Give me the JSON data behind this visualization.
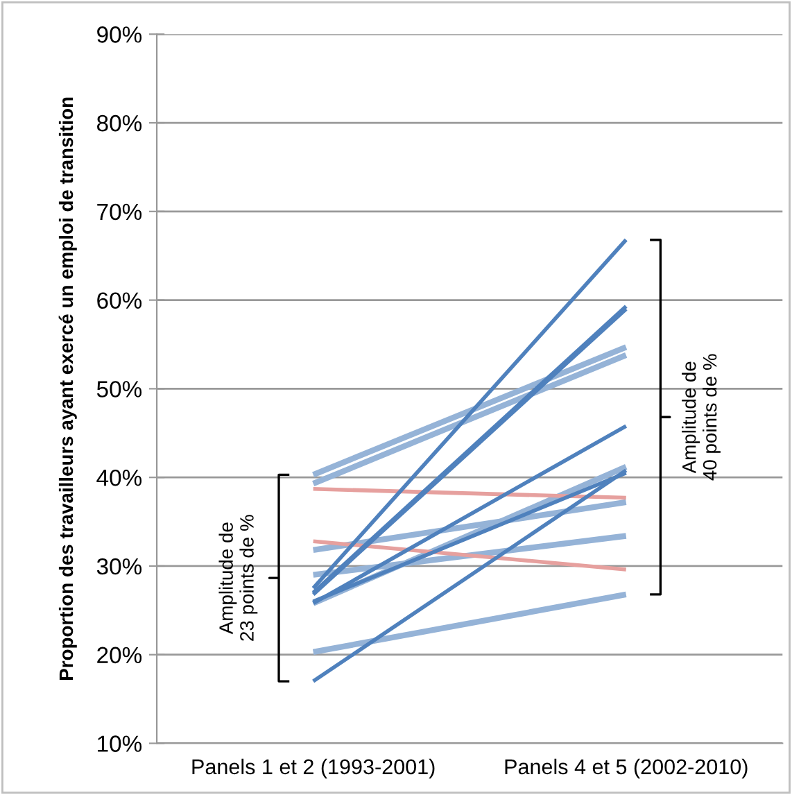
{
  "chart_data": {
    "type": "line",
    "ylabel": "Proportion des travailleurs ayant exercé un emploi de transition",
    "categories": [
      "Panels 1 et 2 (1993-2001)",
      "Panels 4 et 5 (2002-2010)"
    ],
    "ylim": [
      0.1,
      0.9
    ],
    "yticks": [
      {
        "value": 0.1,
        "label": "10%"
      },
      {
        "value": 0.2,
        "label": "20%"
      },
      {
        "value": 0.3,
        "label": "30%"
      },
      {
        "value": 0.4,
        "label": "40%"
      },
      {
        "value": 0.5,
        "label": "50%"
      },
      {
        "value": 0.6,
        "label": "60%"
      },
      {
        "value": 0.7,
        "label": "70%"
      },
      {
        "value": 0.8,
        "label": "80%"
      },
      {
        "value": 0.9,
        "label": "90%"
      }
    ],
    "grid": "y",
    "legend": false,
    "marker": "none",
    "line_style": "solid",
    "series": [
      {
        "color": "#95b3d7",
        "values": [
          0.403,
          0.547
        ]
      },
      {
        "color": "#95b3d7",
        "values": [
          0.393,
          0.538
        ]
      },
      {
        "color": "#95b3d7",
        "values": [
          0.318,
          0.372
        ]
      },
      {
        "color": "#95b3d7",
        "values": [
          0.29,
          0.334
        ]
      },
      {
        "color": "#95b3d7",
        "values": [
          0.258,
          0.412
        ]
      },
      {
        "color": "#95b3d7",
        "values": [
          0.203,
          0.268
        ]
      },
      {
        "color": "#e6a09e",
        "values": [
          0.387,
          0.377
        ]
      },
      {
        "color": "#e6a09e",
        "values": [
          0.328,
          0.296
        ]
      },
      {
        "color": "#4f81bd",
        "values": [
          0.275,
          0.668
        ]
      },
      {
        "color": "#4f81bd",
        "values": [
          0.27,
          0.593
        ]
      },
      {
        "color": "#4f81bd",
        "values": [
          0.268,
          0.59
        ]
      },
      {
        "color": "#4f81bd",
        "values": [
          0.258,
          0.458
        ]
      },
      {
        "color": "#4f81bd",
        "values": [
          0.26,
          0.405
        ]
      },
      {
        "color": "#4f81bd",
        "values": [
          0.17,
          0.408
        ]
      }
    ],
    "annotations": [
      "Amplitude de\n23 points de %",
      "Amplitude de\n40 points de %"
    ]
  }
}
